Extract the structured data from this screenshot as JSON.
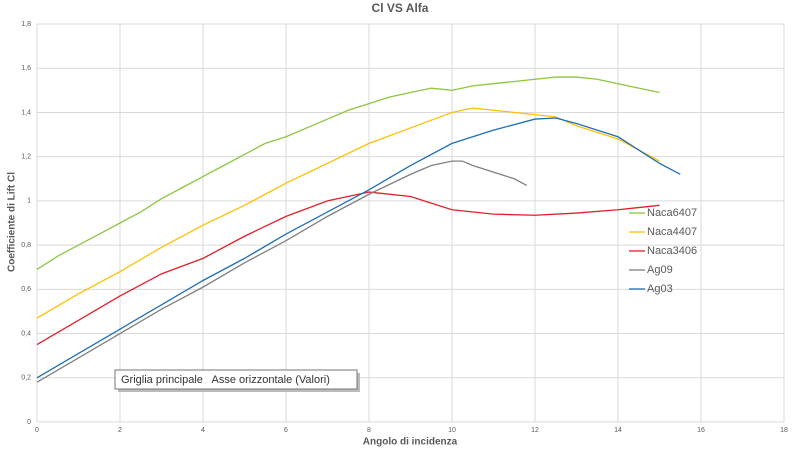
{
  "chart_data": {
    "type": "line",
    "title": "Cl VS Alfa",
    "x_label": "Angolo di incidenza",
    "y_label": "Coefficiente di Lift Cl",
    "tooltip": "Griglia principale   Asse orizzontale (Valori)",
    "xlim": [
      0,
      18
    ],
    "xticks": [
      0,
      2,
      4,
      6,
      8,
      10,
      12,
      14,
      16,
      18
    ],
    "ylim": [
      0,
      1.8
    ],
    "yticks": [
      0,
      {
        "value": 0.2,
        "label": "0,2"
      },
      {
        "value": 0.4,
        "label": "0,4"
      },
      {
        "value": 0.6,
        "label": "0,6"
      },
      {
        "value": 0.8,
        "label": "0,8"
      },
      1,
      {
        "value": 1.2,
        "label": "1,2"
      },
      {
        "value": 1.4,
        "label": "1,4"
      },
      {
        "value": 1.6,
        "label": "1,6"
      },
      {
        "value": 1.8,
        "label": "1,8"
      }
    ],
    "grid": true,
    "legend": "right",
    "series": [
      {
        "name": "Naca6407",
        "color": "#8dc63f",
        "x": [
          0,
          0.5,
          1,
          1.5,
          2,
          2.5,
          3,
          3.5,
          4,
          4.5,
          5,
          5.5,
          6,
          6.5,
          7,
          7.5,
          8,
          8.5,
          9,
          9.5,
          10,
          10.5,
          11,
          11.5,
          12,
          12.5,
          13,
          13.5,
          14,
          14.5,
          15
        ],
        "values": [
          0.69,
          0.75,
          0.8,
          0.85,
          0.9,
          0.95,
          1.01,
          1.06,
          1.11,
          1.16,
          1.21,
          1.26,
          1.29,
          1.33,
          1.37,
          1.41,
          1.44,
          1.47,
          1.49,
          1.51,
          1.5,
          1.52,
          1.53,
          1.54,
          1.55,
          1.56,
          1.56,
          1.55,
          1.53,
          1.51,
          1.49
        ]
      },
      {
        "name": "Naca4407",
        "color": "#ffc000",
        "x": [
          0,
          1,
          2,
          3,
          4,
          5,
          6,
          7,
          8,
          9,
          10,
          10.5,
          11,
          12,
          12.5,
          13,
          14,
          15
        ],
        "values": [
          0.47,
          0.58,
          0.68,
          0.79,
          0.89,
          0.98,
          1.08,
          1.17,
          1.26,
          1.33,
          1.4,
          1.42,
          1.41,
          1.39,
          1.38,
          1.34,
          1.28,
          1.18
        ]
      },
      {
        "name": "Naca3406",
        "color": "#e3202a",
        "x": [
          0,
          1,
          2,
          3,
          4,
          5,
          6,
          7,
          8,
          9,
          10,
          11,
          12,
          13,
          14,
          15
        ],
        "values": [
          0.35,
          0.46,
          0.57,
          0.67,
          0.74,
          0.84,
          0.93,
          1.0,
          1.04,
          1.02,
          0.96,
          0.94,
          0.935,
          0.945,
          0.96,
          0.98
        ]
      },
      {
        "name": "Ag09",
        "color": "#808080",
        "x": [
          0,
          1,
          2,
          3,
          4,
          5,
          6,
          7,
          8,
          9,
          9.5,
          10,
          10.25,
          10.5,
          11,
          11.5,
          11.8
        ],
        "values": [
          0.18,
          0.29,
          0.4,
          0.51,
          0.61,
          0.72,
          0.82,
          0.93,
          1.03,
          1.12,
          1.16,
          1.18,
          1.18,
          1.16,
          1.13,
          1.1,
          1.07
        ]
      },
      {
        "name": "Ag03",
        "color": "#1f6fb5",
        "x": [
          0,
          1,
          2,
          3,
          4,
          5,
          6,
          7,
          8,
          9,
          10,
          11,
          12,
          12.5,
          13,
          14,
          15,
          15.5
        ],
        "values": [
          0.2,
          0.31,
          0.42,
          0.53,
          0.64,
          0.74,
          0.85,
          0.95,
          1.05,
          1.16,
          1.26,
          1.32,
          1.37,
          1.375,
          1.35,
          1.29,
          1.17,
          1.12
        ]
      }
    ]
  }
}
